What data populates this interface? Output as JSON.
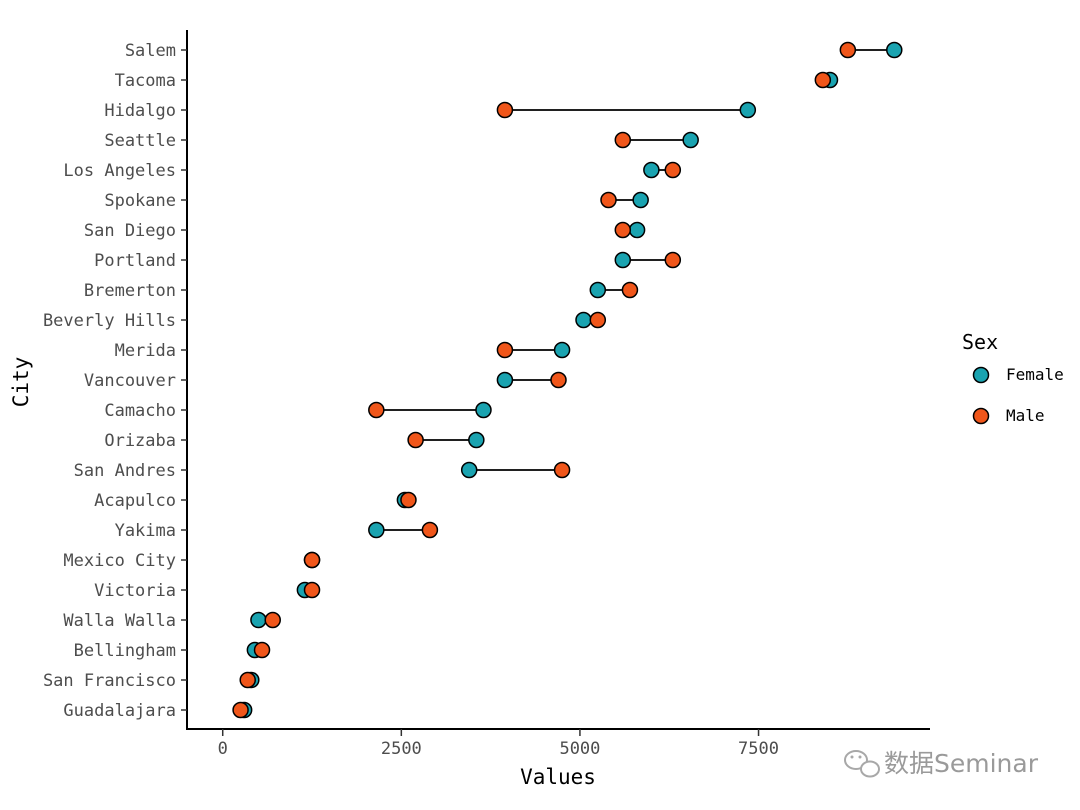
{
  "chart_data": {
    "type": "dumbbell",
    "title": "",
    "xlabel": "Values",
    "ylabel": "City",
    "xlim": [
      -500,
      9900
    ],
    "xticks": [
      0,
      2500,
      5000,
      7500
    ],
    "xtick_labels": [
      "0",
      "2500",
      "5000",
      "7500"
    ],
    "grid": false,
    "legend": {
      "title": "Sex",
      "placement": "right",
      "entries": [
        {
          "name": "Female",
          "color": "#1aa3b0"
        },
        {
          "name": "Male",
          "color": "#f0561a"
        }
      ]
    },
    "categories": [
      "Salem",
      "Tacoma",
      "Hidalgo",
      "Seattle",
      "Los Angeles",
      "Spokane",
      "San Diego",
      "Portland",
      "Bremerton",
      "Beverly Hills",
      "Merida",
      "Vancouver",
      "Camacho",
      "Orizaba",
      "San Andres",
      "Acapulco",
      "Yakima",
      "Mexico City",
      "Victoria",
      "Walla Walla",
      "Bellingham",
      "San Francisco",
      "Guadalajara"
    ],
    "series": [
      {
        "name": "Female",
        "values": [
          9400,
          8500,
          7350,
          6550,
          6000,
          5850,
          5800,
          5600,
          5250,
          5050,
          4750,
          3950,
          3650,
          3550,
          3450,
          2550,
          2150,
          1250,
          1150,
          500,
          450,
          400,
          300
        ]
      },
      {
        "name": "Male",
        "values": [
          8750,
          8400,
          3950,
          5600,
          6300,
          5400,
          5600,
          6300,
          5700,
          5250,
          3950,
          4700,
          2150,
          2700,
          4750,
          2600,
          2900,
          1250,
          1250,
          700,
          550,
          350,
          250
        ]
      }
    ]
  },
  "watermark": {
    "text": "数据Seminar",
    "icon": "wechat-icon"
  }
}
